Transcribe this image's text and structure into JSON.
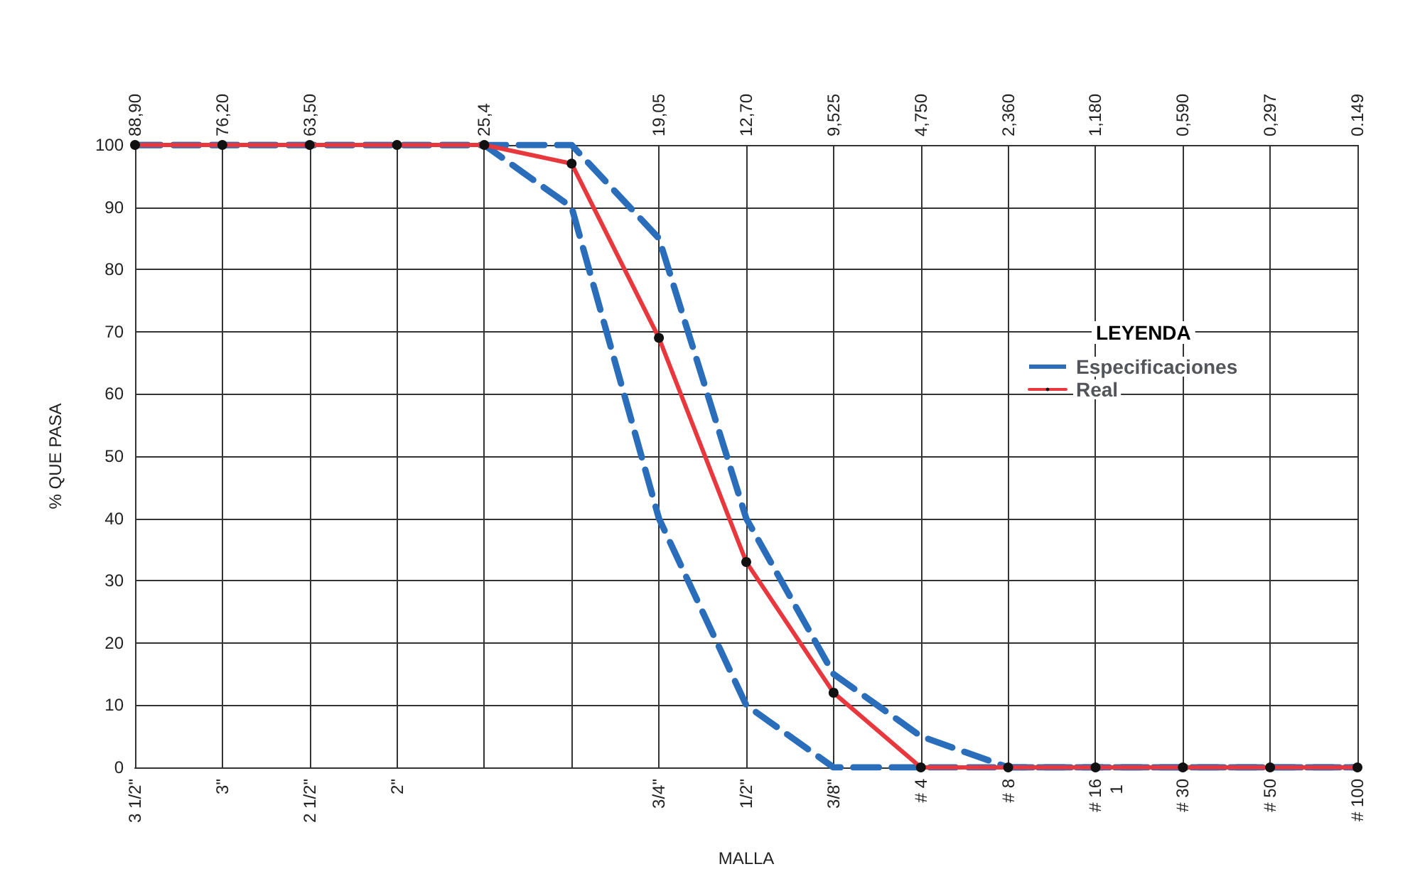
{
  "chart_data": {
    "type": "line",
    "xlabel": "MALLA",
    "ylabel": "% QUE PASA",
    "legend_title": "LEYENDA",
    "legend": "right",
    "grid": true,
    "categories": [
      "3 1/2\"",
      "3\"",
      "2 1/2\"",
      "2\"",
      null,
      null,
      "3/4\"",
      "1/2\"",
      "3/8\"",
      "# 4",
      "# 8",
      "# 16",
      "# 30",
      "# 50",
      "# 100"
    ],
    "ylim": [
      0,
      100
    ],
    "yticks": [
      0,
      10,
      20,
      30,
      40,
      50,
      60,
      70,
      80,
      90,
      100
    ],
    "annotations": [
      "88,90",
      "76,20",
      "63,50",
      "25,4",
      "19,05",
      "12,70",
      "9,525",
      "4,750",
      "2,360",
      "1,180",
      "0,590",
      "0,297",
      "0.149",
      "1"
    ],
    "series": [
      {
        "name": "Real",
        "color": "#e8383d",
        "line_style": "solid",
        "marker": "circle",
        "values": [
          100,
          100,
          100,
          100,
          100,
          97,
          69,
          33,
          12,
          0,
          0,
          0,
          0,
          0,
          0
        ]
      },
      {
        "name": "Especificaciones",
        "color": "#2a6ebb",
        "line_style": "dashed",
        "values": [
          100,
          100,
          100,
          100,
          100,
          100,
          85,
          40,
          15,
          5,
          0,
          0,
          0,
          0,
          0
        ]
      },
      {
        "color": "#2a6ebb",
        "line_style": "dashed",
        "values": [
          100,
          100,
          100,
          100,
          100,
          90,
          40,
          10,
          0,
          0,
          0,
          0,
          0,
          0,
          0
        ]
      }
    ]
  }
}
